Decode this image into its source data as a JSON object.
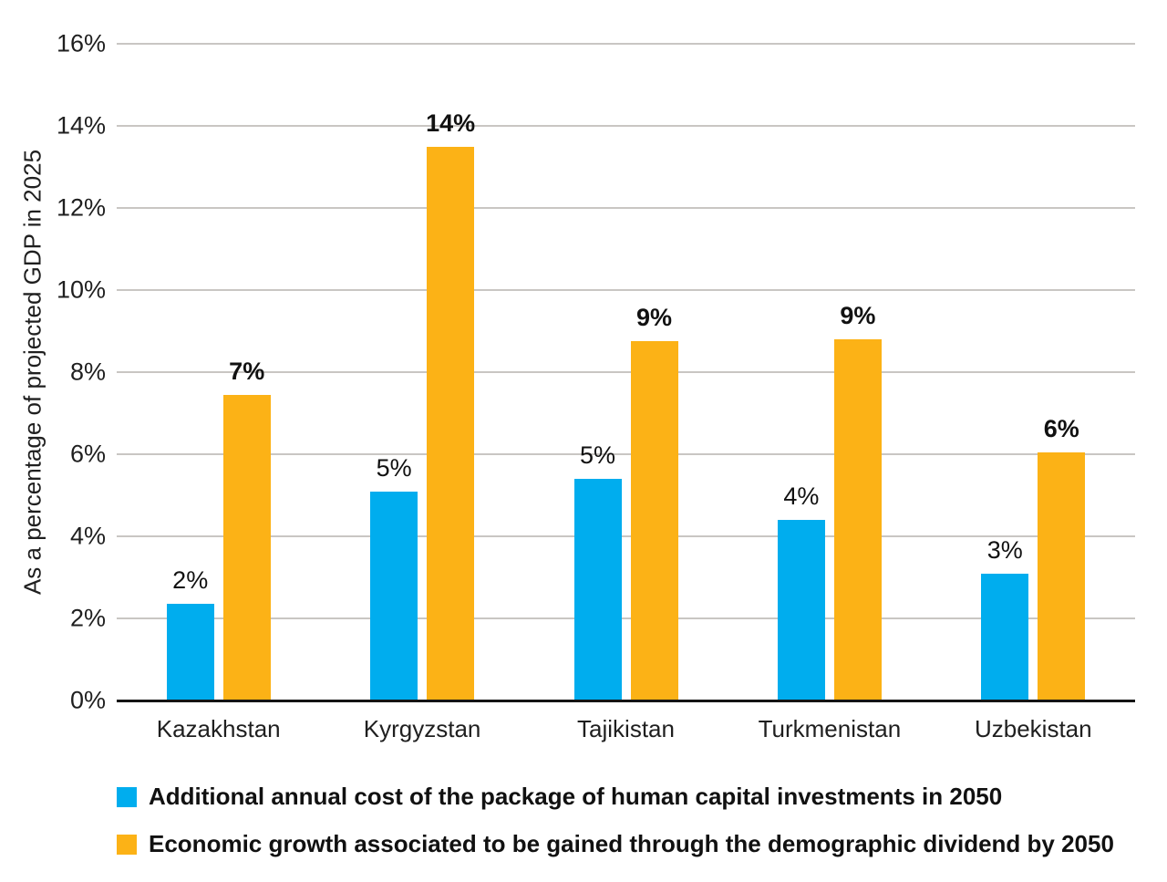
{
  "chart_data": {
    "type": "bar",
    "title": "",
    "xlabel": "",
    "ylabel": "As a percentage of projected GDP in 2025",
    "ylim": [
      0,
      16
    ],
    "grid": true,
    "legend_position": "bottom-left",
    "yticks": [
      {
        "value": 0,
        "label": "0%"
      },
      {
        "value": 2,
        "label": "2%"
      },
      {
        "value": 4,
        "label": "4%"
      },
      {
        "value": 6,
        "label": "6%"
      },
      {
        "value": 8,
        "label": "8%"
      },
      {
        "value": 10,
        "label": "10%"
      },
      {
        "value": 12,
        "label": "12%"
      },
      {
        "value": 14,
        "label": "14%"
      },
      {
        "value": 16,
        "label": "16%"
      }
    ],
    "categories": [
      "Kazakhstan",
      "Kyrgyzstan",
      "Tajikistan",
      "Turkmenistan",
      "Uzbekistan"
    ],
    "series": [
      {
        "name": "Additional annual cost of the package of human capital investments in 2050",
        "color": "#00ADEE",
        "values": [
          2.35,
          5.1,
          5.4,
          4.4,
          3.1
        ],
        "labels": [
          "2%",
          "5%",
          "5%",
          "4%",
          "3%"
        ],
        "label_bold": false
      },
      {
        "name": "Economic growth associated to be gained through the demographic dividend by 2050",
        "color": "#FCB216",
        "values": [
          7.45,
          13.5,
          8.75,
          8.8,
          6.05
        ],
        "labels": [
          "7%",
          "14%",
          "9%",
          "9%",
          "6%"
        ],
        "label_bold": true
      }
    ]
  },
  "colors": {
    "background": "#ffffff",
    "gridline": "#c9c6c3",
    "axis_line": "#141414",
    "text": "#1a1a1a"
  }
}
